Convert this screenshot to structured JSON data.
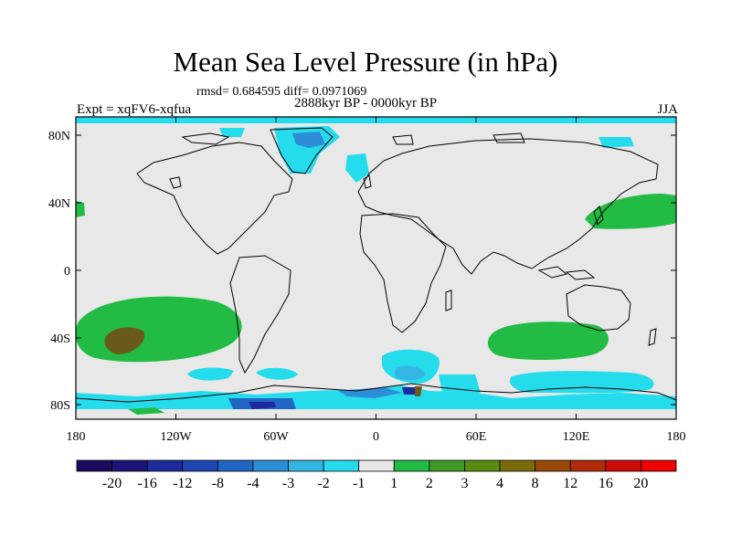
{
  "title": "Mean Sea Level Pressure (in hPa)",
  "stats_line": "rmsd= 0.684595 diff= 0.0971069",
  "period": "2888kyr BP - 0000kyr BP",
  "experiment": "Expt = xqFV6-xqfua",
  "season": "JJA",
  "lat_labels": [
    "80N",
    "40N",
    "0",
    "40S",
    "80S"
  ],
  "lon_labels": [
    "180",
    "120W",
    "60W",
    "0",
    "60E",
    "120E",
    "180"
  ],
  "colorbar": {
    "labels": [
      "-20",
      "-16",
      "-12",
      "-8",
      "-4",
      "-3",
      "-2",
      "-1",
      "1",
      "2",
      "3",
      "4",
      "8",
      "12",
      "16",
      "20"
    ],
    "colors": [
      "#1a0a5c",
      "#1c1478",
      "#1c2a9c",
      "#1f47b4",
      "#2266c4",
      "#2d8ed8",
      "#34b6e4",
      "#25dcec",
      "#e8e8e8",
      "#22bb44",
      "#3e9a26",
      "#5a8a10",
      "#7a6a08",
      "#9a4a08",
      "#b02a08",
      "#cc0a08",
      "#ee0000"
    ]
  },
  "colors": {
    "ocean_neutral": "#e8e8e8",
    "positive_1": "#22bb44",
    "positive_3": "#6a5a1a",
    "negative_1": "#25dcec",
    "negative_2": "#34b6e4",
    "negative_3": "#2d8ed8",
    "negative_4": "#2266c4",
    "negative_8": "#1c2a9c"
  }
}
